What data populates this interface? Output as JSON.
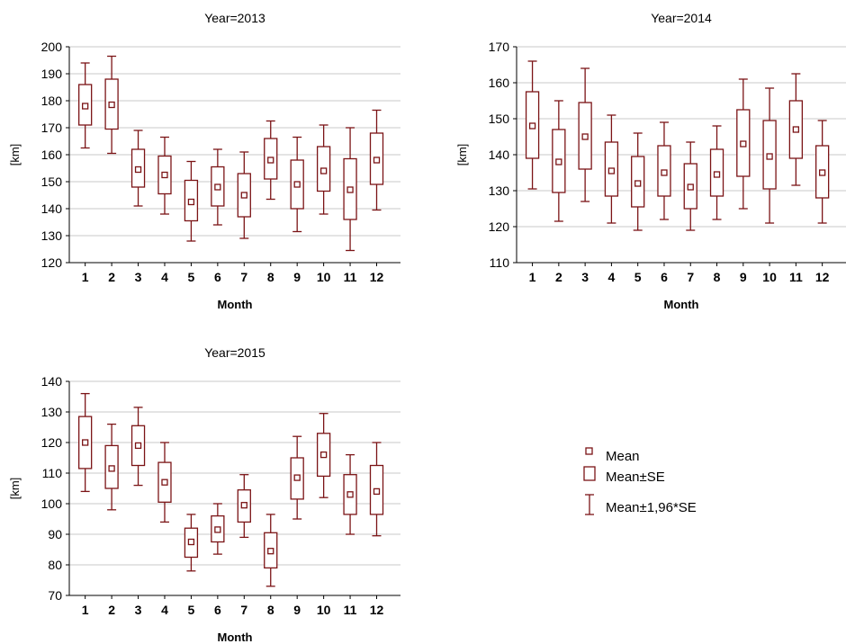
{
  "style": {
    "series_color": "#7b1416",
    "grid_color": "#c8c8c8"
  },
  "legend": {
    "mean_label": "Mean",
    "se_label": "Mean±SE",
    "ci_label": "Mean±1,96*SE"
  },
  "chart_data": [
    {
      "type": "box",
      "title": "Year=2013",
      "xlabel": "Month",
      "ylabel": "[km]",
      "categories": [
        "1",
        "2",
        "3",
        "4",
        "5",
        "6",
        "7",
        "8",
        "9",
        "10",
        "11",
        "12"
      ],
      "ylim": [
        120,
        200
      ],
      "yticks": [
        120,
        130,
        140,
        150,
        160,
        170,
        180,
        190,
        200
      ],
      "mean": [
        178,
        178.5,
        154.5,
        152.5,
        142.5,
        148,
        145,
        158,
        149,
        154,
        147,
        158
      ],
      "se_low": [
        171,
        169.5,
        148,
        145.5,
        135.5,
        141,
        137,
        151,
        140,
        146.5,
        136,
        149
      ],
      "se_high": [
        186,
        188,
        162,
        159.5,
        150.5,
        155.5,
        153,
        166,
        158,
        163,
        158.5,
        168
      ],
      "ci_low": [
        162.5,
        160.5,
        141,
        138,
        128,
        134,
        129,
        143.5,
        131.5,
        138,
        124.5,
        139.5
      ],
      "ci_high": [
        194,
        196.5,
        169,
        166.5,
        157.5,
        162,
        161,
        172.5,
        166.5,
        171,
        170,
        176.5
      ]
    },
    {
      "type": "box",
      "title": "Year=2014",
      "xlabel": "Month",
      "ylabel": "[km]",
      "categories": [
        "1",
        "2",
        "3",
        "4",
        "5",
        "6",
        "7",
        "8",
        "9",
        "10",
        "11",
        "12"
      ],
      "ylim": [
        110,
        170
      ],
      "yticks": [
        110,
        120,
        130,
        140,
        150,
        160,
        170
      ],
      "mean": [
        148,
        138,
        145,
        135.5,
        132,
        135,
        131,
        134.5,
        143,
        139.5,
        147,
        135
      ],
      "se_low": [
        139,
        129.5,
        136,
        128.5,
        125.5,
        128.5,
        125,
        128.5,
        134,
        130.5,
        139,
        128
      ],
      "se_high": [
        157.5,
        147,
        154.5,
        143.5,
        139.5,
        142.5,
        137.5,
        141.5,
        152.5,
        149.5,
        155,
        142.5
      ],
      "ci_low": [
        130.5,
        121.5,
        127,
        121,
        119,
        122,
        119,
        122,
        125,
        121,
        131.5,
        121
      ],
      "ci_high": [
        166,
        155,
        164,
        151,
        146,
        149,
        143.5,
        148,
        161,
        158.5,
        162.5,
        149.5
      ]
    },
    {
      "type": "box",
      "title": "Year=2015",
      "xlabel": "Month",
      "ylabel": "[km]",
      "categories": [
        "1",
        "2",
        "3",
        "4",
        "5",
        "6",
        "7",
        "8",
        "9",
        "10",
        "11",
        "12"
      ],
      "ylim": [
        70,
        140
      ],
      "yticks": [
        70,
        80,
        90,
        100,
        110,
        120,
        130,
        140
      ],
      "mean": [
        120,
        111.5,
        119,
        107,
        87.5,
        91.5,
        99.5,
        84.5,
        108.5,
        116,
        103,
        104
      ],
      "se_low": [
        111.5,
        105,
        112.5,
        100.5,
        82.5,
        87.5,
        94,
        79,
        101.5,
        109,
        96.5,
        96.5
      ],
      "se_high": [
        128.5,
        119,
        125.5,
        113.5,
        92,
        96,
        104.5,
        90.5,
        115,
        123,
        109.5,
        112.5
      ],
      "ci_low": [
        104,
        98,
        106,
        94,
        78,
        83.5,
        89,
        73,
        95,
        102,
        90,
        89.5
      ],
      "ci_high": [
        136,
        126,
        131.5,
        120,
        96.5,
        100,
        109.5,
        96.5,
        122,
        129.5,
        116,
        120
      ]
    }
  ]
}
